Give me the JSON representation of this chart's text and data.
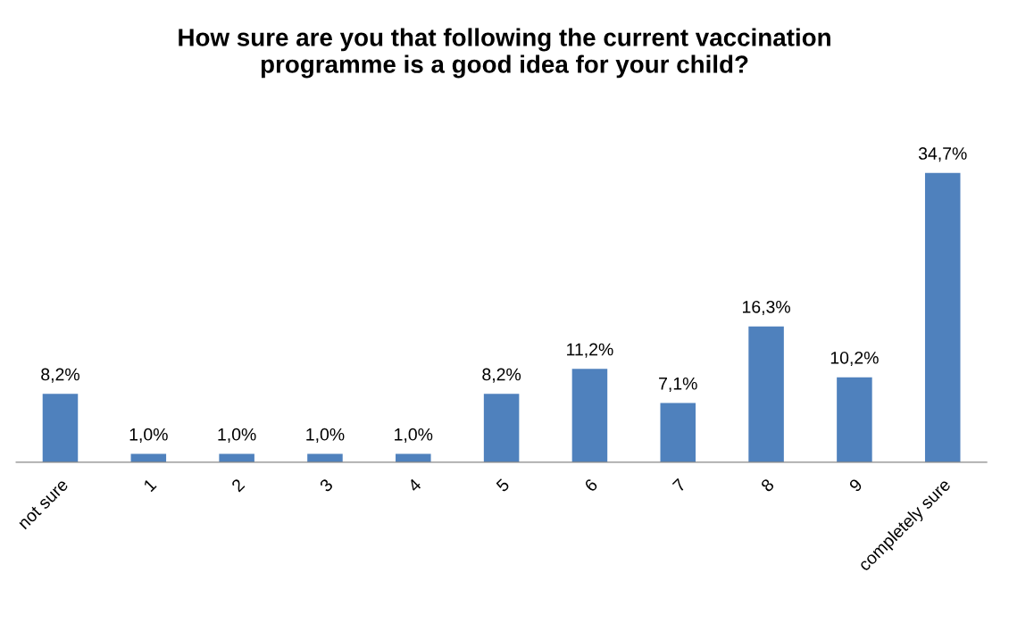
{
  "chart_data": {
    "type": "bar",
    "title": "How sure are you that following the current vaccination\nprogramme is a good idea for your child?",
    "categories": [
      "not sure",
      "1",
      "2",
      "3",
      "4",
      "5",
      "6",
      "7",
      "8",
      "9",
      "completely sure"
    ],
    "values": [
      8.2,
      1.0,
      1.0,
      1.0,
      1.0,
      8.2,
      11.2,
      7.1,
      16.3,
      10.2,
      34.7
    ],
    "value_labels": [
      "8,2%",
      "1,0%",
      "1,0%",
      "1,0%",
      "1,0%",
      "8,2%",
      "11,2%",
      "7,1%",
      "16,3%",
      "10,2%",
      "34,7%"
    ],
    "color": "#4f81bd",
    "grid": false,
    "legend": false
  }
}
